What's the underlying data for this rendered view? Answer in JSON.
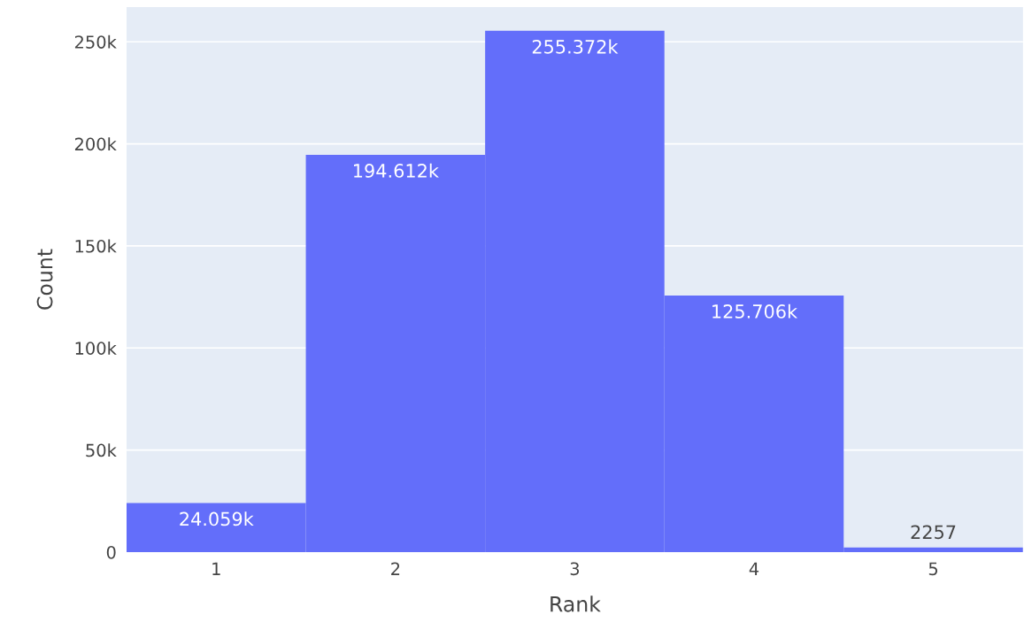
{
  "chart_data": {
    "type": "histogram",
    "xlabel": "Rank",
    "ylabel": "Count",
    "bins": [
      0.5,
      1.5,
      2.5,
      3.5,
      4.5,
      5.5
    ],
    "values": [
      24059,
      194612,
      255372,
      125706,
      2257
    ],
    "value_labels": [
      "24.059k",
      "194.612k",
      "255.372k",
      "125.706k",
      "2257"
    ],
    "color": "#636efa",
    "xlim": [
      0.5,
      5.5
    ],
    "xticks": [
      1,
      2,
      3,
      4,
      5
    ],
    "ylim": [
      0,
      267000
    ],
    "yticks": [
      0,
      {
        "value": 50000,
        "label": "50k"
      },
      {
        "value": 100000,
        "label": "100k"
      },
      {
        "value": 150000,
        "label": "150k"
      },
      {
        "value": 200000,
        "label": "200k"
      },
      {
        "value": 250000,
        "label": "250k"
      }
    ],
    "grid": "y"
  }
}
